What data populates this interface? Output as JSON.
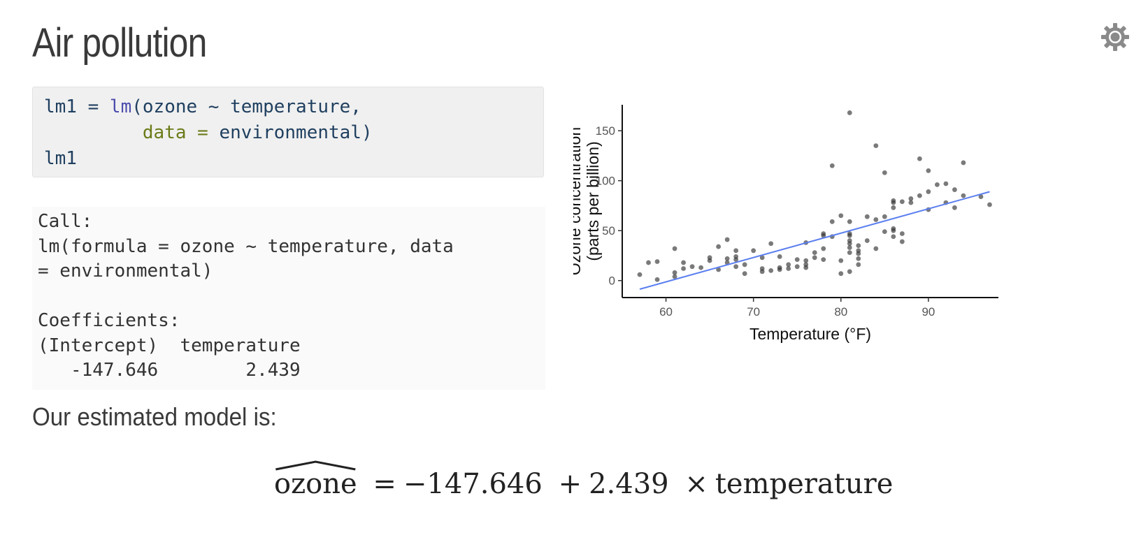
{
  "slide": {
    "title": "Air pollution"
  },
  "icons": {
    "settings": "gear-icon"
  },
  "code": {
    "lines": [
      {
        "prefix": "lm1 = ",
        "fn": "lm",
        "rest": "(ozone ~ temperature,"
      },
      {
        "indent": "         ",
        "arg": "data = ",
        "rest": "environmental)"
      },
      {
        "text": "lm1"
      }
    ]
  },
  "output": {
    "lines": [
      "Call:",
      "lm(formula = ozone ~ temperature, data",
      "= environmental)",
      "",
      "Coefficients:",
      "(Intercept)  temperature",
      "   -147.646        2.439"
    ]
  },
  "text": {
    "model_intro": "Our estimated model is:"
  },
  "equation": {
    "response": "ozone",
    "equals": "=",
    "intercept": "−147.646",
    "plus": "+",
    "slope": "2.439",
    "times": "×",
    "predictor": "temperature"
  },
  "colors": {
    "fit_line": "#5b7ff0",
    "points": "#333333",
    "code_bg": "#f0f0f0"
  },
  "chart_data": {
    "type": "scatter",
    "xlabel": "Temperature (°F)",
    "ylabel_lines": [
      "Ozone concentration",
      "(parts per billion)"
    ],
    "xlim": [
      55,
      98
    ],
    "ylim": [
      -17,
      176
    ],
    "x_ticks": [
      60,
      70,
      80,
      90
    ],
    "y_ticks": [
      0,
      50,
      100,
      150
    ],
    "grid": false,
    "fit_line": {
      "intercept": -147.646,
      "slope": 2.439,
      "x_range": [
        57,
        97
      ]
    },
    "points": [
      [
        57,
        6
      ],
      [
        58,
        18
      ],
      [
        59,
        1
      ],
      [
        59,
        19
      ],
      [
        61,
        4
      ],
      [
        61,
        8
      ],
      [
        61,
        32
      ],
      [
        62,
        12
      ],
      [
        62,
        18
      ],
      [
        63,
        14
      ],
      [
        64,
        13
      ],
      [
        65,
        20
      ],
      [
        65,
        23
      ],
      [
        66,
        11
      ],
      [
        66,
        34
      ],
      [
        67,
        18
      ],
      [
        67,
        22
      ],
      [
        67,
        41
      ],
      [
        68,
        14
      ],
      [
        68,
        21
      ],
      [
        68,
        24
      ],
      [
        68,
        30
      ],
      [
        69,
        7
      ],
      [
        69,
        16
      ],
      [
        70,
        30
      ],
      [
        71,
        12
      ],
      [
        71,
        23
      ],
      [
        71,
        9
      ],
      [
        72,
        10
      ],
      [
        72,
        37
      ],
      [
        73,
        11
      ],
      [
        73,
        13
      ],
      [
        73,
        24
      ],
      [
        74,
        12
      ],
      [
        74,
        16
      ],
      [
        75,
        21
      ],
      [
        75,
        14
      ],
      [
        76,
        20
      ],
      [
        76,
        16
      ],
      [
        76,
        13
      ],
      [
        76,
        38
      ],
      [
        77,
        23
      ],
      [
        77,
        28
      ],
      [
        78,
        21
      ],
      [
        78,
        32
      ],
      [
        78,
        45
      ],
      [
        78,
        47
      ],
      [
        79,
        44
      ],
      [
        79,
        59
      ],
      [
        79,
        115
      ],
      [
        80,
        7
      ],
      [
        80,
        20
      ],
      [
        80,
        65
      ],
      [
        81,
        9
      ],
      [
        81,
        28
      ],
      [
        81,
        33
      ],
      [
        81,
        37
      ],
      [
        81,
        40
      ],
      [
        81,
        45
      ],
      [
        81,
        47
      ],
      [
        81,
        59
      ],
      [
        81,
        168
      ],
      [
        82,
        16
      ],
      [
        82,
        22
      ],
      [
        82,
        27
      ],
      [
        82,
        30
      ],
      [
        82,
        35
      ],
      [
        83,
        40
      ],
      [
        83,
        64
      ],
      [
        84,
        32
      ],
      [
        84,
        61
      ],
      [
        84,
        135
      ],
      [
        85,
        49
      ],
      [
        85,
        64
      ],
      [
        85,
        108
      ],
      [
        86,
        44
      ],
      [
        86,
        50
      ],
      [
        86,
        52
      ],
      [
        86,
        73
      ],
      [
        86,
        78
      ],
      [
        86,
        80
      ],
      [
        87,
        39
      ],
      [
        87,
        47
      ],
      [
        87,
        79
      ],
      [
        88,
        78
      ],
      [
        88,
        82
      ],
      [
        89,
        85
      ],
      [
        89,
        122
      ],
      [
        90,
        71
      ],
      [
        90,
        89
      ],
      [
        90,
        110
      ],
      [
        91,
        96
      ],
      [
        92,
        78
      ],
      [
        92,
        97
      ],
      [
        93,
        73
      ],
      [
        93,
        91
      ],
      [
        94,
        85
      ],
      [
        94,
        118
      ],
      [
        96,
        84
      ],
      [
        97,
        76
      ]
    ]
  }
}
